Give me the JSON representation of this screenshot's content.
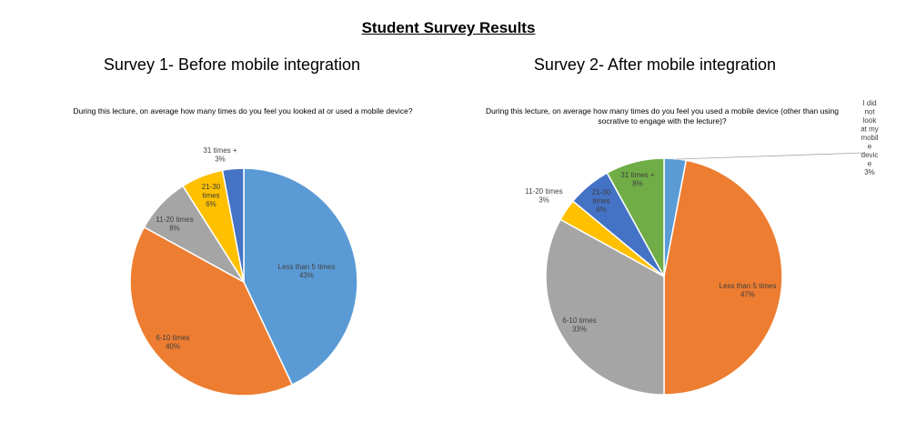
{
  "page_title": "Student Survey Results",
  "chart_data": [
    {
      "type": "pie",
      "title": "Survey 1- Before mobile integration",
      "question": "During this lecture, on average how many times do you feel you looked at or used a mobile device?",
      "slices": [
        {
          "label": "Less than 5 times",
          "value": 43,
          "pct": "43%",
          "color": "#5B9BD5"
        },
        {
          "label": "6-10 times",
          "value": 40,
          "pct": "40%",
          "color": "#ED7D31"
        },
        {
          "label": "11-20 times",
          "value": 8,
          "pct": "8%",
          "color": "#A5A5A5"
        },
        {
          "label": "21-30 times",
          "value": 6,
          "pct": "6%",
          "color": "#FFC000"
        },
        {
          "label": "31 times +",
          "value": 3,
          "pct": "3%",
          "color": "#4472C4"
        }
      ]
    },
    {
      "type": "pie",
      "title": "Survey 2- After mobile integration",
      "question": "During this lecture, on average how many times do you feel you used a mobile device (other than using socrative to engage with the lecture)?",
      "slices": [
        {
          "label": "I did not look at my mobile device",
          "value": 3,
          "pct": "3%",
          "color": "#5B9BD5"
        },
        {
          "label": "Less than 5 times",
          "value": 47,
          "pct": "47%",
          "color": "#ED7D31"
        },
        {
          "label": "6-10 times",
          "value": 33,
          "pct": "33%",
          "color": "#A5A5A5"
        },
        {
          "label": "11-20 times",
          "value": 3,
          "pct": "3%",
          "color": "#FFC000"
        },
        {
          "label": "21-30 times",
          "value": 6,
          "pct": "6%",
          "color": "#4472C4"
        },
        {
          "label": "31 times +",
          "value": 8,
          "pct": "8%",
          "color": "#70AD47"
        }
      ]
    }
  ]
}
